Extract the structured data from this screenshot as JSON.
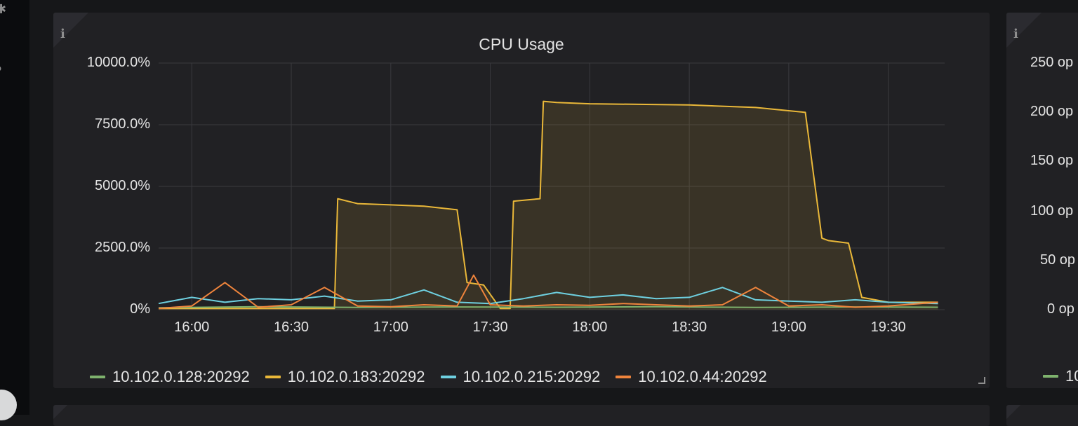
{
  "panel_cpu": {
    "title": "CPU Usage",
    "info_icon": "info-icon"
  },
  "panel_right": {
    "info_icon": "info-icon",
    "yticks": [
      "250 op",
      "200 op",
      "150 op",
      "100 op",
      "50 op",
      "0 op"
    ],
    "legend_partial": "10"
  },
  "colors": {
    "green": "#7eb26d",
    "yellow": "#eab839",
    "cyan": "#6ed0e0",
    "orange": "#ef843c"
  },
  "chart_data": {
    "type": "line",
    "title": "CPU Usage",
    "ylim": [
      0,
      10000
    ],
    "yticks": [
      "10000.0%",
      "7500.0%",
      "5000.0%",
      "2500.0%",
      "0%"
    ],
    "xticks": [
      "16:00",
      "16:30",
      "17:00",
      "17:30",
      "18:00",
      "18:30",
      "19:00",
      "19:30"
    ],
    "grid": true,
    "legend_placement": "bottom",
    "series": [
      {
        "name": "10.102.0.128:20292",
        "color": "#7eb26d",
        "x": [
          "15:50",
          "16:20",
          "16:50",
          "17:20",
          "17:50",
          "18:20",
          "18:50",
          "19:20",
          "19:45"
        ],
        "y": [
          80,
          120,
          90,
          110,
          100,
          120,
          90,
          110,
          100
        ]
      },
      {
        "name": "10.102.0.183:20292",
        "color": "#eab839",
        "x": [
          "15:50",
          "16:43",
          "16:44",
          "16:50",
          "17:00",
          "17:10",
          "17:20",
          "17:23",
          "17:28",
          "17:33",
          "17:36",
          "17:37",
          "17:45",
          "17:46",
          "17:50",
          "18:00",
          "18:30",
          "18:50",
          "19:05",
          "19:10",
          "19:12",
          "19:18",
          "19:22",
          "19:26",
          "19:30",
          "19:45"
        ],
        "y": [
          50,
          50,
          4500,
          4300,
          4250,
          4200,
          4050,
          1100,
          1000,
          50,
          50,
          4400,
          4500,
          8450,
          8400,
          8350,
          8300,
          8200,
          8000,
          2900,
          2800,
          2700,
          500,
          400,
          300,
          300
        ]
      },
      {
        "name": "10.102.0.215:20292",
        "color": "#6ed0e0",
        "x": [
          "15:50",
          "16:00",
          "16:10",
          "16:20",
          "16:30",
          "16:40",
          "16:50",
          "17:00",
          "17:10",
          "17:20",
          "17:30",
          "17:40",
          "17:50",
          "18:00",
          "18:10",
          "18:20",
          "18:30",
          "18:40",
          "18:50",
          "19:00",
          "19:10",
          "19:20",
          "19:30",
          "19:45"
        ],
        "y": [
          250,
          500,
          300,
          450,
          400,
          550,
          350,
          400,
          800,
          300,
          250,
          450,
          700,
          500,
          600,
          450,
          500,
          900,
          400,
          350,
          300,
          400,
          300,
          250
        ]
      },
      {
        "name": "10.102.0.44:20292",
        "color": "#ef843c",
        "x": [
          "15:50",
          "16:00",
          "16:10",
          "16:20",
          "16:30",
          "16:40",
          "16:50",
          "17:00",
          "17:10",
          "17:20",
          "17:25",
          "17:30",
          "17:40",
          "17:50",
          "18:00",
          "18:10",
          "18:20",
          "18:30",
          "18:40",
          "18:50",
          "19:00",
          "19:10",
          "19:20",
          "19:30",
          "19:45"
        ],
        "y": [
          50,
          150,
          1100,
          100,
          200,
          900,
          150,
          120,
          200,
          150,
          1400,
          200,
          150,
          200,
          180,
          250,
          200,
          150,
          200,
          900,
          150,
          200,
          100,
          150,
          300
        ]
      }
    ]
  }
}
